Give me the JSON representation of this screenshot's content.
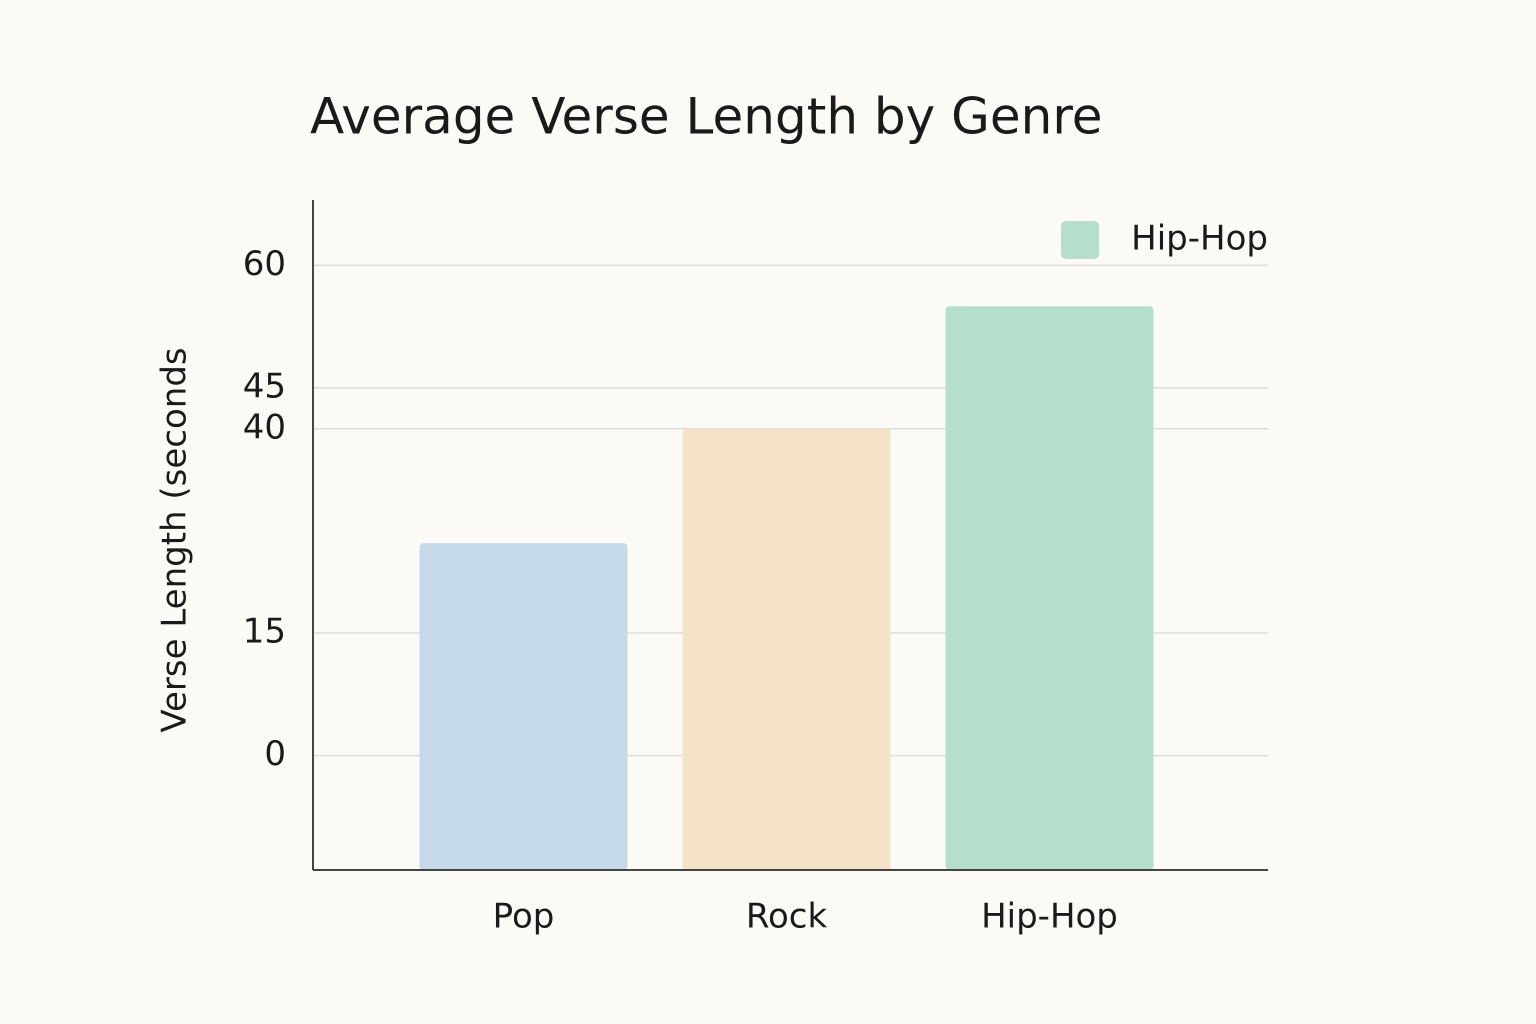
{
  "chart_data": {
    "type": "bar",
    "title": "Average Verse Length by Genre",
    "y_label": "Verse Length (seconds",
    "categories": [
      "Pop",
      "Rock",
      "Hip-Hop"
    ],
    "values": [
      26,
      40,
      55
    ],
    "colors": [
      "#c5d9e8",
      "#f5e3c9",
      "#b5dfcc"
    ],
    "ylim": [
      -14,
      68
    ],
    "yticks": [
      60,
      45,
      40,
      15,
      0
    ],
    "grid": true,
    "legend": {
      "labels": [
        "Hip-Hop"
      ],
      "colors": [
        "#b5dfcc"
      ],
      "position": "top-right"
    }
  }
}
